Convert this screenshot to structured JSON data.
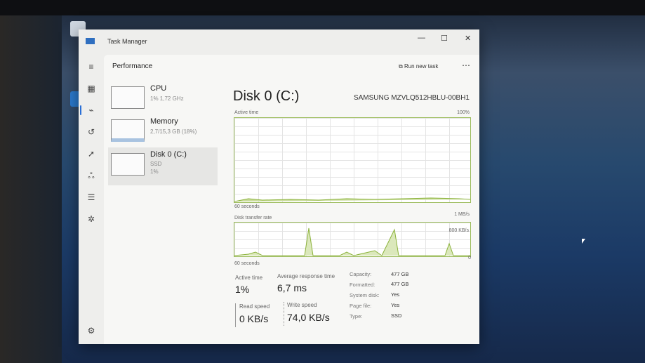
{
  "window": {
    "title": "Task Manager",
    "controls": {
      "minimize": "—",
      "maximize": "☐",
      "close": "✕"
    }
  },
  "nav": {
    "icons": [
      "hamburger-icon",
      "processes-icon",
      "performance-icon",
      "app-history-icon",
      "startup-icon",
      "users-icon",
      "details-icon",
      "services-icon",
      "settings-icon"
    ]
  },
  "header": {
    "title": "Performance",
    "run_new_task": "Run new task",
    "more": "⋯"
  },
  "sidebar": {
    "items": [
      {
        "name": "CPU",
        "sub1": "1% 1,72 GHz",
        "sub2": ""
      },
      {
        "name": "Memory",
        "sub1": "2,7/15,3 GB (18%)",
        "sub2": ""
      },
      {
        "name": "Disk 0 (C:)",
        "sub1": "SSD",
        "sub2": "1%"
      }
    ]
  },
  "main": {
    "title": "Disk 0 (C:)",
    "model": "SAMSUNG MZVLQ512HBLU-00BH1",
    "active_graph": {
      "label": "Active time",
      "max": "100%",
      "time": "60 seconds",
      "min": ""
    },
    "transfer_graph": {
      "label": "Disk transfer rate",
      "max": "1 MB/s",
      "mid": "800 KB/s",
      "time": "60 seconds",
      "min": "0"
    },
    "stats": {
      "active_time_label": "Active time",
      "active_time": "1%",
      "avg_resp_label": "Average response time",
      "avg_resp": "6,7 ms",
      "read_label": "Read speed",
      "read": "0 KB/s",
      "write_label": "Write speed",
      "write": "74,0 KB/s"
    },
    "props": [
      {
        "k": "Capacity:",
        "v": "477 GB"
      },
      {
        "k": "Formatted:",
        "v": "477 GB"
      },
      {
        "k": "System disk:",
        "v": "Yes"
      },
      {
        "k": "Page file:",
        "v": "Yes"
      },
      {
        "k": "Type:",
        "v": "SSD"
      }
    ]
  },
  "colors": {
    "accent": "#2a6fd6",
    "disk_graph": "#8bb23a"
  }
}
